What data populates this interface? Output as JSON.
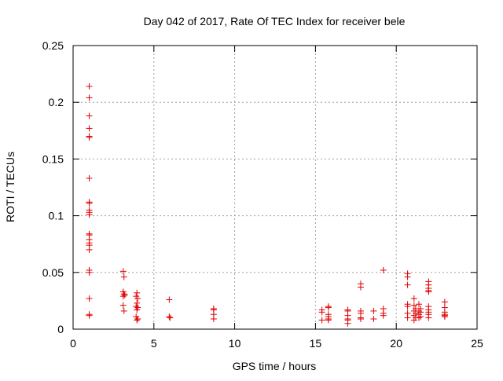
{
  "chart_data": {
    "type": "scatter",
    "title": "Day 042 of 2017, Rate Of TEC Index for receiver bele",
    "xlabel": "GPS time / hours",
    "ylabel": "ROTI / TECUs",
    "xlim": [
      0,
      25
    ],
    "ylim": [
      0,
      0.25
    ],
    "x_ticks": [
      0,
      5,
      10,
      15,
      20,
      25
    ],
    "x_tick_labels": [
      "0",
      "5",
      "10",
      "15",
      "20",
      "25"
    ],
    "y_ticks": [
      0,
      0.05,
      0.1,
      0.15,
      0.2,
      0.25
    ],
    "y_tick_labels": [
      "0",
      "0.05",
      "0.1",
      "0.15",
      "0.2",
      "0.25"
    ],
    "grid": true,
    "legend": "none",
    "marker": "+",
    "series": [
      {
        "color": "#e00000",
        "points": [
          [
            1.0,
            0.214
          ],
          [
            1.0,
            0.204
          ],
          [
            1.0,
            0.188
          ],
          [
            1.0,
            0.177
          ],
          [
            1.0,
            0.17
          ],
          [
            1.0,
            0.169
          ],
          [
            1.0,
            0.133
          ],
          [
            1.0,
            0.112
          ],
          [
            1.0,
            0.111
          ],
          [
            1.0,
            0.105
          ],
          [
            1.0,
            0.103
          ],
          [
            1.0,
            0.101
          ],
          [
            1.0,
            0.084
          ],
          [
            1.0,
            0.083
          ],
          [
            1.0,
            0.079
          ],
          [
            1.0,
            0.076
          ],
          [
            1.0,
            0.074
          ],
          [
            1.0,
            0.07
          ],
          [
            1.0,
            0.052
          ],
          [
            1.0,
            0.05
          ],
          [
            1.0,
            0.027
          ],
          [
            1.0,
            0.013
          ],
          [
            1.0,
            0.012
          ],
          [
            3.1,
            0.051
          ],
          [
            3.15,
            0.046
          ],
          [
            3.1,
            0.033
          ],
          [
            3.15,
            0.031
          ],
          [
            3.2,
            0.03
          ],
          [
            3.1,
            0.029
          ],
          [
            3.1,
            0.021
          ],
          [
            3.15,
            0.016
          ],
          [
            3.95,
            0.032
          ],
          [
            3.9,
            0.029
          ],
          [
            4.0,
            0.027
          ],
          [
            3.95,
            0.023
          ],
          [
            3.9,
            0.02
          ],
          [
            4.0,
            0.019
          ],
          [
            3.95,
            0.017
          ],
          [
            3.9,
            0.011
          ],
          [
            4.0,
            0.009
          ],
          [
            3.95,
            0.008
          ],
          [
            5.95,
            0.026
          ],
          [
            5.95,
            0.011
          ],
          [
            6.0,
            0.01
          ],
          [
            8.7,
            0.018
          ],
          [
            8.7,
            0.017
          ],
          [
            8.7,
            0.013
          ],
          [
            8.7,
            0.009
          ],
          [
            15.4,
            0.017
          ],
          [
            15.4,
            0.015
          ],
          [
            15.4,
            0.008
          ],
          [
            15.8,
            0.02
          ],
          [
            15.8,
            0.019
          ],
          [
            15.8,
            0.013
          ],
          [
            15.8,
            0.011
          ],
          [
            15.8,
            0.009
          ],
          [
            15.8,
            0.008
          ],
          [
            17.0,
            0.017
          ],
          [
            17.0,
            0.016
          ],
          [
            17.0,
            0.012
          ],
          [
            17.0,
            0.009
          ],
          [
            17.0,
            0.008
          ],
          [
            17.0,
            0.005
          ],
          [
            17.8,
            0.04
          ],
          [
            17.8,
            0.037
          ],
          [
            17.8,
            0.016
          ],
          [
            17.8,
            0.014
          ],
          [
            17.8,
            0.01
          ],
          [
            17.8,
            0.009
          ],
          [
            18.6,
            0.016
          ],
          [
            18.6,
            0.009
          ],
          [
            19.2,
            0.052
          ],
          [
            19.2,
            0.018
          ],
          [
            19.2,
            0.014
          ],
          [
            19.2,
            0.012
          ],
          [
            20.7,
            0.049
          ],
          [
            20.7,
            0.046
          ],
          [
            20.7,
            0.039
          ],
          [
            20.7,
            0.022
          ],
          [
            20.7,
            0.02
          ],
          [
            20.7,
            0.014
          ],
          [
            20.7,
            0.01
          ],
          [
            21.1,
            0.027
          ],
          [
            21.1,
            0.021
          ],
          [
            21.2,
            0.018
          ],
          [
            21.1,
            0.016
          ],
          [
            21.2,
            0.014
          ],
          [
            21.1,
            0.012
          ],
          [
            21.2,
            0.01
          ],
          [
            21.1,
            0.008
          ],
          [
            21.4,
            0.022
          ],
          [
            21.5,
            0.018
          ],
          [
            21.4,
            0.016
          ],
          [
            21.5,
            0.015
          ],
          [
            21.4,
            0.013
          ],
          [
            21.5,
            0.011
          ],
          [
            21.4,
            0.01
          ],
          [
            22.0,
            0.042
          ],
          [
            22.0,
            0.039
          ],
          [
            22.0,
            0.036
          ],
          [
            22.0,
            0.034
          ],
          [
            22.0,
            0.033
          ],
          [
            22.0,
            0.02
          ],
          [
            22.0,
            0.017
          ],
          [
            22.0,
            0.015
          ],
          [
            22.0,
            0.013
          ],
          [
            22.0,
            0.01
          ],
          [
            23.0,
            0.024
          ],
          [
            23.0,
            0.019
          ],
          [
            23.0,
            0.015
          ],
          [
            23.0,
            0.013
          ],
          [
            23.0,
            0.012
          ],
          [
            23.0,
            0.011
          ]
        ]
      }
    ]
  }
}
